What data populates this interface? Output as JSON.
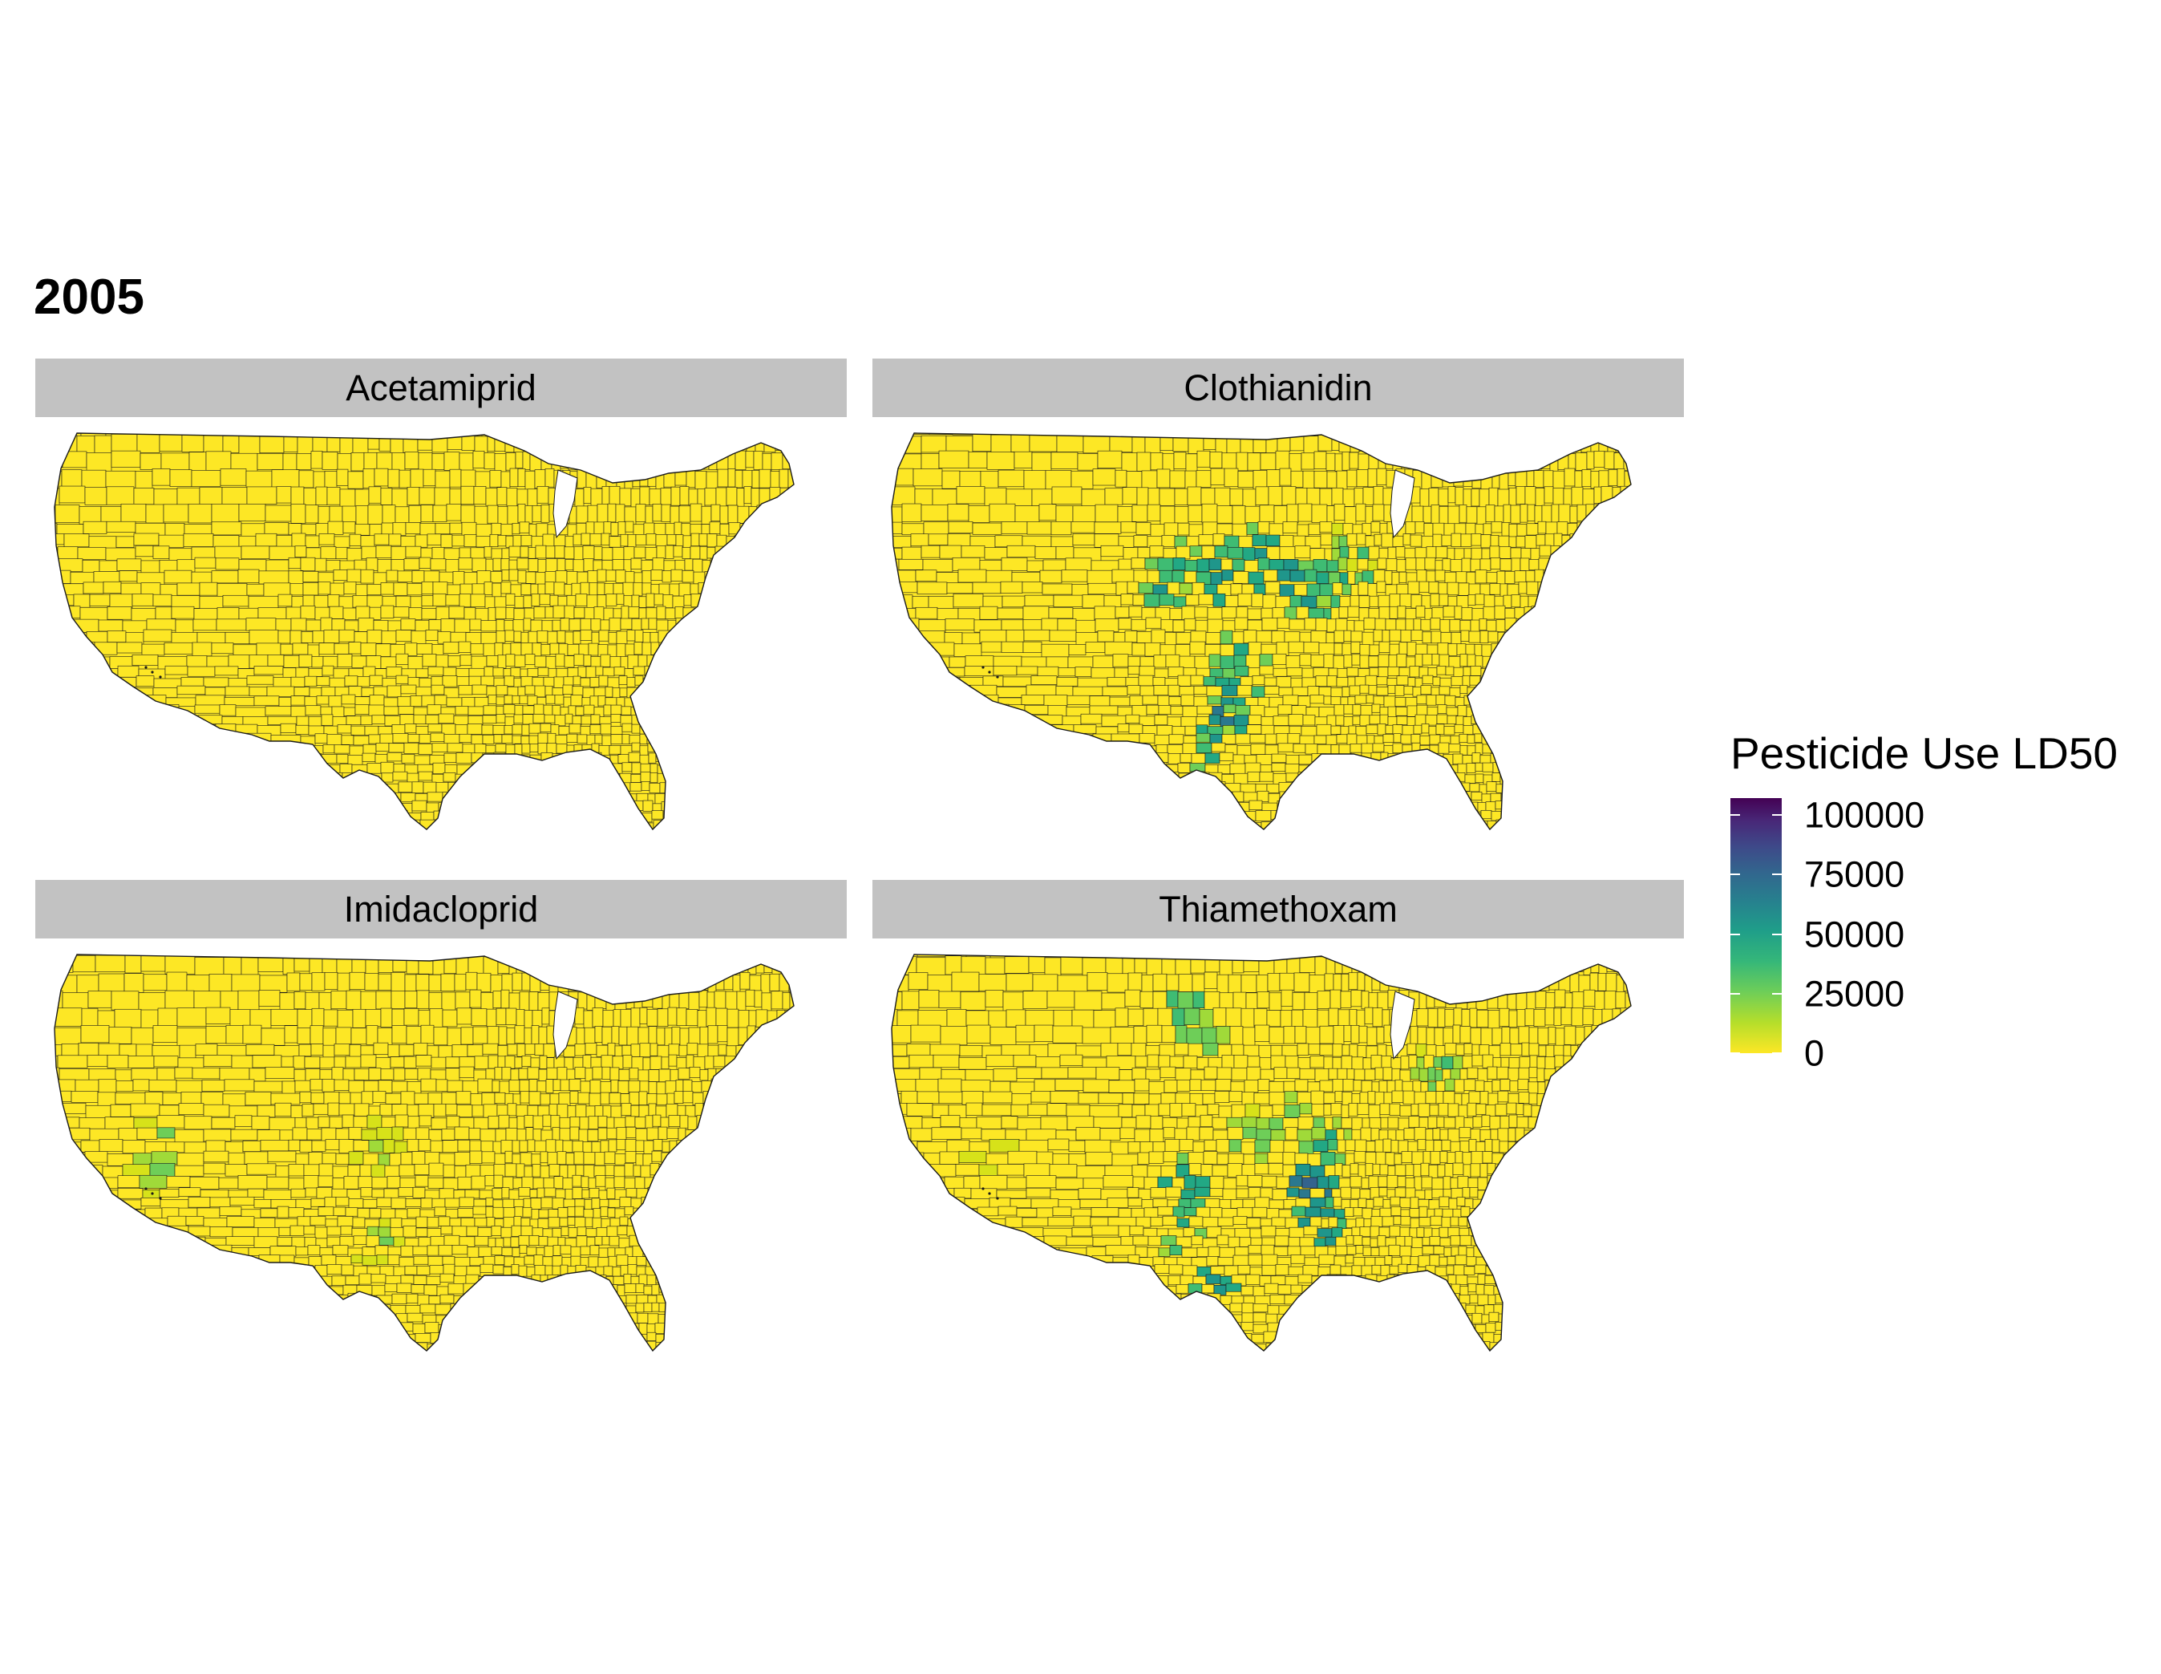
{
  "title": "2005",
  "panels": [
    {
      "label": "Acetamiprid"
    },
    {
      "label": "Clothianidin"
    },
    {
      "label": "Imidacloprid"
    },
    {
      "label": "Thiamethoxam"
    }
  ],
  "legend": {
    "title": "Pesticide Use LD50",
    "min": 0,
    "max": 107000,
    "ticks": [
      "100000",
      "75000",
      "50000",
      "25000",
      "0"
    ]
  },
  "colors": {
    "background": "#ffffff",
    "strip": "#c2c2c2",
    "low": "#fde725",
    "high": "#440154",
    "county_border": "#1a1a1a"
  }
}
